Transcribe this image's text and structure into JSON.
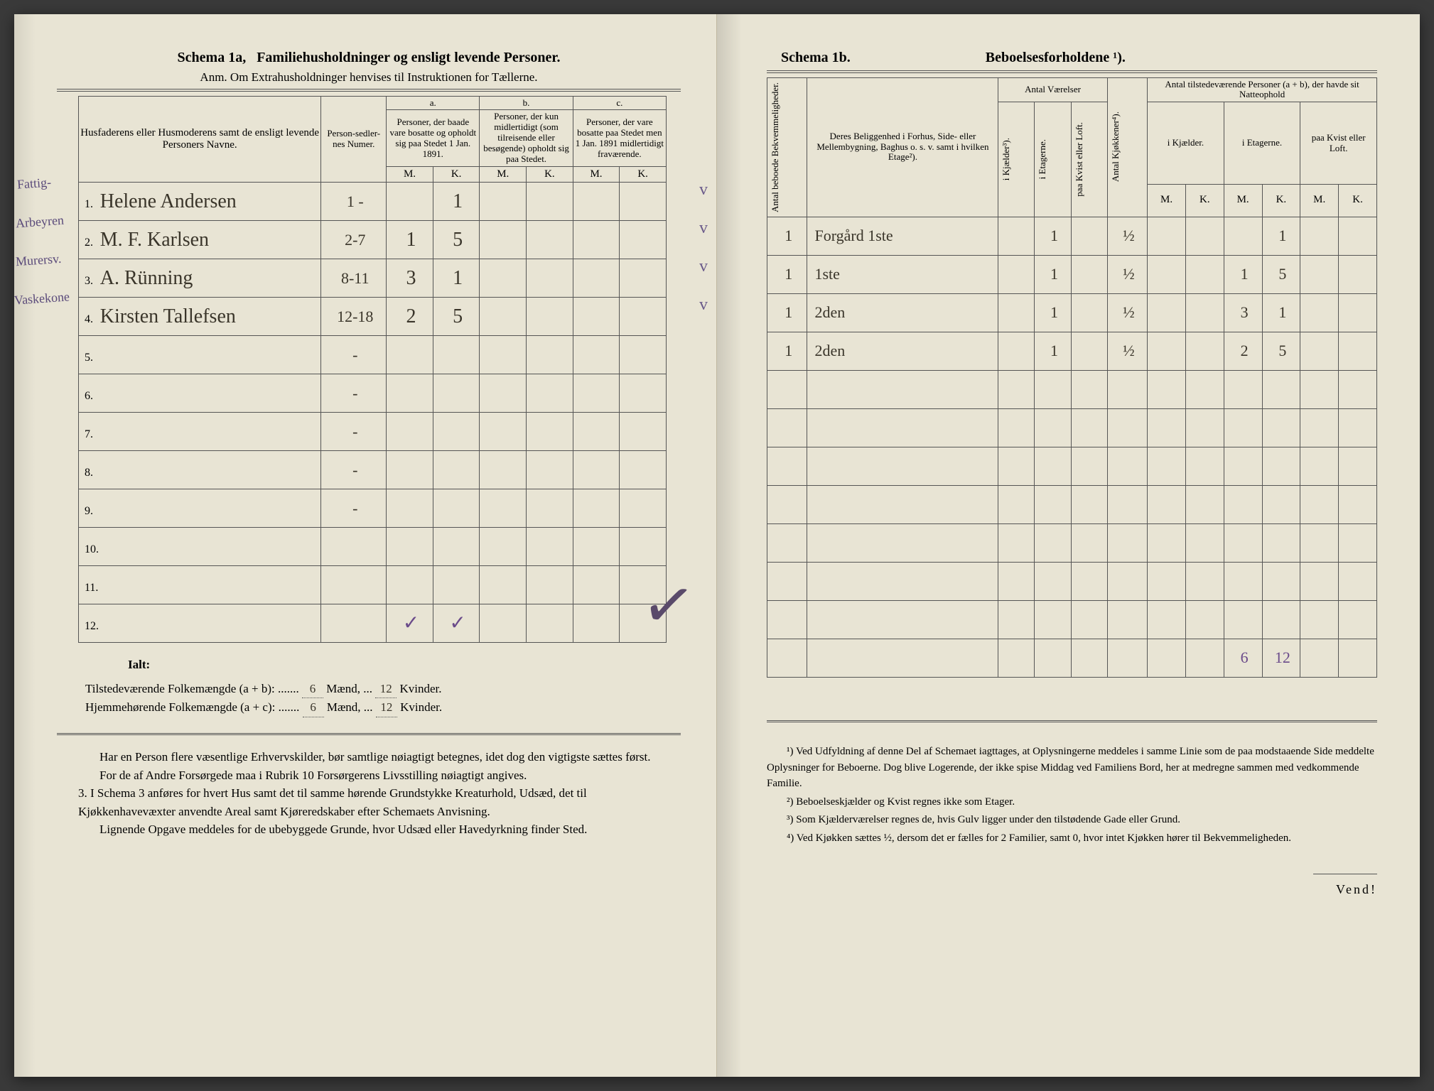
{
  "left": {
    "schema_label": "Schema 1a,",
    "schema_title": "Familiehusholdninger og ensligt levende Personer.",
    "anm": "Anm. Om Extrahusholdninger henvises til Instruktionen for Tællerne.",
    "headers": {
      "name_col": "Husfaderens eller Husmoderens samt de ensligt levende Personers Navne.",
      "numer": "Person-sedler-nes Numer.",
      "a_label": "a.",
      "a_text": "Personer, der baade vare bosatte og opholdt sig paa Stedet 1 Jan. 1891.",
      "b_label": "b.",
      "b_text": "Personer, der kun midlertidigt (som tilreisende eller besøgende) opholdt sig paa Stedet.",
      "c_label": "c.",
      "c_text": "Personer, der vare bosatte paa Stedet men 1 Jan. 1891 midlertidigt fraværende.",
      "M": "M.",
      "K": "K."
    },
    "margin_notes": [
      "Fattig-",
      "Arbeyren",
      "Murersv.",
      "Vaskekone"
    ],
    "rows": [
      {
        "n": "1.",
        "name": "Helene Andersen",
        "numer": "1 -",
        "aM": "",
        "aK": "1",
        "bM": "",
        "bK": "",
        "cM": "",
        "cK": ""
      },
      {
        "n": "2.",
        "name": "M. F. Karlsen",
        "numer": "2-7",
        "aM": "1",
        "aK": "5",
        "bM": "",
        "bK": "",
        "cM": "",
        "cK": ""
      },
      {
        "n": "3.",
        "name": "A. Rünning",
        "numer": "8-11",
        "aM": "3",
        "aK": "1",
        "bM": "",
        "bK": "",
        "cM": "",
        "cK": ""
      },
      {
        "n": "4.",
        "name": "Kirsten Tallefsen",
        "numer": "12-18",
        "aM": "2",
        "aK": "5",
        "bM": "",
        "bK": "",
        "cM": "",
        "cK": ""
      },
      {
        "n": "5.",
        "name": "",
        "numer": "-",
        "aM": "",
        "aK": "",
        "bM": "",
        "bK": "",
        "cM": "",
        "cK": ""
      },
      {
        "n": "6.",
        "name": "",
        "numer": "-",
        "aM": "",
        "aK": "",
        "bM": "",
        "bK": "",
        "cM": "",
        "cK": ""
      },
      {
        "n": "7.",
        "name": "",
        "numer": "-",
        "aM": "",
        "aK": "",
        "bM": "",
        "bK": "",
        "cM": "",
        "cK": ""
      },
      {
        "n": "8.",
        "name": "",
        "numer": "-",
        "aM": "",
        "aK": "",
        "bM": "",
        "bK": "",
        "cM": "",
        "cK": ""
      },
      {
        "n": "9.",
        "name": "",
        "numer": "-",
        "aM": "",
        "aK": "",
        "bM": "",
        "bK": "",
        "cM": "",
        "cK": ""
      },
      {
        "n": "10.",
        "name": "",
        "numer": "",
        "aM": "",
        "aK": "",
        "bM": "",
        "bK": "",
        "cM": "",
        "cK": ""
      },
      {
        "n": "11.",
        "name": "",
        "numer": "",
        "aM": "",
        "aK": "",
        "bM": "",
        "bK": "",
        "cM": "",
        "cK": ""
      },
      {
        "n": "12.",
        "name": "",
        "numer": "",
        "aM": "",
        "aK": "",
        "bM": "",
        "bK": "",
        "cM": "",
        "cK": ""
      }
    ],
    "tick_marks": {
      "aM": "✓",
      "aK": "✓"
    },
    "check_marks_right": [
      "v",
      "v",
      "v",
      "v"
    ],
    "ialt": "Ialt:",
    "totals": {
      "tilstede_label": "Tilstedeværende Folkemængde (a + b): .......",
      "tilstede_m": "6",
      "tilstede_m_lbl": "Mænd, ...",
      "tilstede_k": "12",
      "tilstede_k_lbl": "Kvinder.",
      "hjemme_label": "Hjemmehørende Folkemængde (a + c): .......",
      "hjemme_m": "6",
      "hjemme_m_lbl": "Mænd, ...",
      "hjemme_k": "12",
      "hjemme_k_lbl": "Kvinder."
    },
    "paragraphs": [
      "Har en Person flere væsentlige Erhvervskilder, bør samtlige nøiagtigt betegnes, idet dog den vigtigste sættes først.",
      "For de af Andre Forsørgede maa i Rubrik 10 Forsørgerens Livsstilling nøiagtigt angives.",
      "3. I Schema 3 anføres for hvert Hus samt det til samme hørende Grundstykke Kreaturhold, Udsæd, det til Kjøkkenhavevæxter anvendte Areal samt Kjøreredskaber efter Schemaets Anvisning.",
      "Lignende Opgave meddeles for de ubebyggede Grunde, hvor Udsæd eller Havedyrkning finder Sted."
    ]
  },
  "right": {
    "schema_label": "Schema 1b.",
    "schema_title": "Beboelsesforholdene ¹).",
    "headers": {
      "bekvem": "Antal beboede Bekvemmeligheder.",
      "beligg": "Deres Beliggenhed i Forhus, Side- eller Mellembygning, Baghus o. s. v. samt i hvilken Etage²).",
      "antal_vaer": "Antal Værelser",
      "kjeld": "i Kjælder³).",
      "etag": "i Etagerne.",
      "kvist": "paa Kvist eller Loft.",
      "kjok": "Antal Kjøkkener⁴).",
      "pers_hdr": "Antal tilstedeværende Personer (a + b), der havde sit Natteophold",
      "ik": "i Kjælder.",
      "iet": "i Etagerne.",
      "pk": "paa Kvist eller Loft.",
      "M": "M.",
      "K": "K."
    },
    "rows": [
      {
        "bk": "1",
        "bel": "Forgård 1ste",
        "kj": "",
        "et": "1",
        "kv": "",
        "ko": "½",
        "ikM": "",
        "ikK": "",
        "ieM": "",
        "ieK": "1",
        "pkM": "",
        "pkK": ""
      },
      {
        "bk": "1",
        "bel": "1ste",
        "kj": "",
        "et": "1",
        "kv": "",
        "ko": "½",
        "ikM": "",
        "ikK": "",
        "ieM": "1",
        "ieK": "5",
        "pkM": "",
        "pkK": ""
      },
      {
        "bk": "1",
        "bel": "2den",
        "kj": "",
        "et": "1",
        "kv": "",
        "ko": "½",
        "ikM": "",
        "ikK": "",
        "ieM": "3",
        "ieK": "1",
        "pkM": "",
        "pkK": ""
      },
      {
        "bk": "1",
        "bel": "2den",
        "kj": "",
        "et": "1",
        "kv": "",
        "ko": "½",
        "ikM": "",
        "ikK": "",
        "ieM": "2",
        "ieK": "5",
        "pkM": "",
        "pkK": ""
      },
      {
        "bk": "",
        "bel": "",
        "kj": "",
        "et": "",
        "kv": "",
        "ko": "",
        "ikM": "",
        "ikK": "",
        "ieM": "",
        "ieK": "",
        "pkM": "",
        "pkK": ""
      },
      {
        "bk": "",
        "bel": "",
        "kj": "",
        "et": "",
        "kv": "",
        "ko": "",
        "ikM": "",
        "ikK": "",
        "ieM": "",
        "ieK": "",
        "pkM": "",
        "pkK": ""
      },
      {
        "bk": "",
        "bel": "",
        "kj": "",
        "et": "",
        "kv": "",
        "ko": "",
        "ikM": "",
        "ikK": "",
        "ieM": "",
        "ieK": "",
        "pkM": "",
        "pkK": ""
      },
      {
        "bk": "",
        "bel": "",
        "kj": "",
        "et": "",
        "kv": "",
        "ko": "",
        "ikM": "",
        "ikK": "",
        "ieM": "",
        "ieK": "",
        "pkM": "",
        "pkK": ""
      },
      {
        "bk": "",
        "bel": "",
        "kj": "",
        "et": "",
        "kv": "",
        "ko": "",
        "ikM": "",
        "ikK": "",
        "ieM": "",
        "ieK": "",
        "pkM": "",
        "pkK": ""
      },
      {
        "bk": "",
        "bel": "",
        "kj": "",
        "et": "",
        "kv": "",
        "ko": "",
        "ikM": "",
        "ikK": "",
        "ieM": "",
        "ieK": "",
        "pkM": "",
        "pkK": ""
      },
      {
        "bk": "",
        "bel": "",
        "kj": "",
        "et": "",
        "kv": "",
        "ko": "",
        "ikM": "",
        "ikK": "",
        "ieM": "",
        "ieK": "",
        "pkM": "",
        "pkK": ""
      },
      {
        "bk": "",
        "bel": "",
        "kj": "",
        "et": "",
        "kv": "",
        "ko": "",
        "ikM": "",
        "ikK": "",
        "ieM": "6",
        "ieK": "12",
        "pkM": "",
        "pkK": ""
      }
    ],
    "footnotes": [
      "¹) Ved Udfyldning af denne Del af Schemaet iagttages, at Oplysningerne meddeles i samme Linie som de paa modstaaende Side meddelte Oplysninger for Beboerne. Dog blive Logerende, der ikke spise Middag ved Familiens Bord, her at medregne sammen med vedkommende Familie.",
      "²) Beboelseskjælder og Kvist regnes ikke som Etager.",
      "³) Som Kjælderværelser regnes de, hvis Gulv ligger under den tilstødende Gade eller Grund.",
      "⁴) Ved Kjøkken sættes ½, dersom det er fælles for 2 Familier, samt 0, hvor intet Kjøkken hører til Bekvemmeligheden."
    ],
    "vend": "Vend!"
  },
  "colors": {
    "paper": "#e8e4d4",
    "ink": "#444",
    "handwriting": "#3a352a",
    "pencil_purple": "#6a4a8a"
  }
}
